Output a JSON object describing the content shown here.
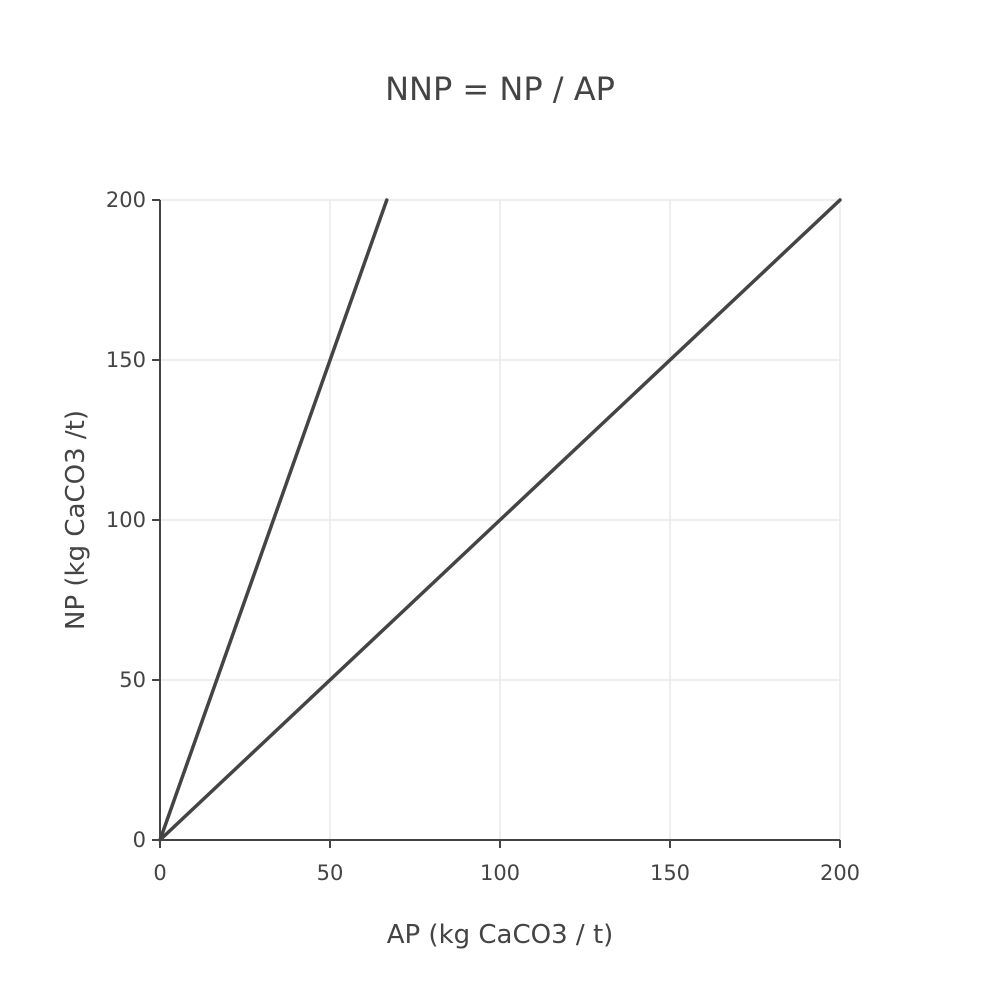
{
  "chart_data": {
    "type": "line",
    "title": "NNP = NP / AP",
    "xlabel": "AP (kg CaCO3 / t)",
    "ylabel": "NP (kg CaCO3 /t)",
    "xlim": [
      0,
      200
    ],
    "ylim": [
      0,
      200
    ],
    "x_ticks": [
      0,
      50,
      100,
      150,
      200
    ],
    "y_ticks": [
      0,
      50,
      100,
      150,
      200
    ],
    "grid": true,
    "series": [
      {
        "color": "#444444",
        "x": [
          0,
          66.7
        ],
        "y": [
          0,
          200
        ]
      },
      {
        "color": "#444444",
        "x": [
          0,
          200
        ],
        "y": [
          0,
          200
        ]
      }
    ]
  }
}
